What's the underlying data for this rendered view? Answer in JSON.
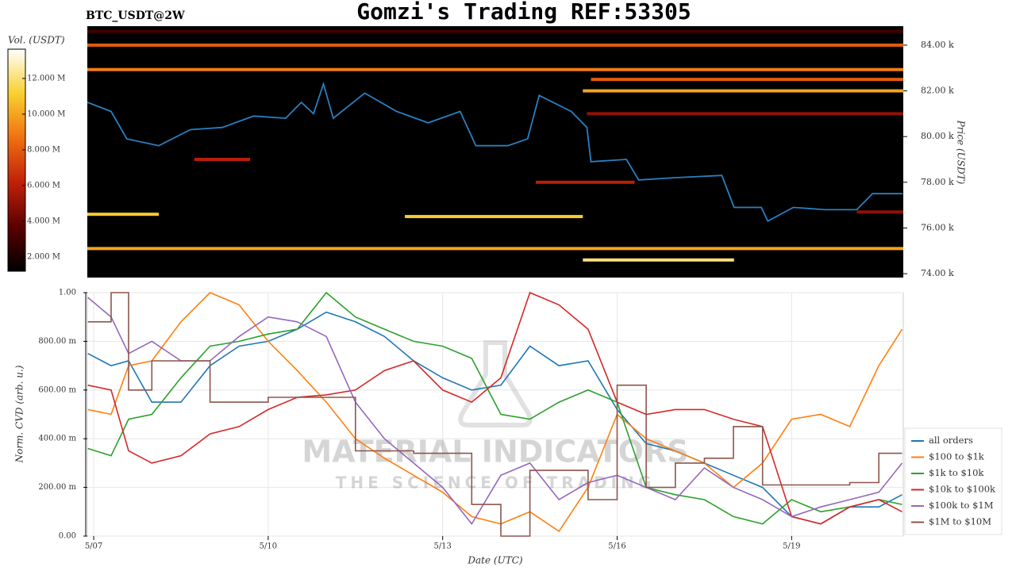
{
  "chart_data": [
    {
      "type": "heatmap",
      "title": "Gomzi's Trading REF:53305",
      "subtitle": "BTC_USDT@2W",
      "colorbar_label": "Vol. (USDT)",
      "ylabel": "Price (USDT)",
      "xlim": [
        6.89,
        20.92
      ],
      "ylim": [
        73830,
        84830
      ],
      "yticks": [
        {
          "value": 74000,
          "label": "74.00 k"
        },
        {
          "value": 76000,
          "label": "76.00 k"
        },
        {
          "value": 78000,
          "label": "78.00 k"
        },
        {
          "value": 80000,
          "label": "80.00 k"
        },
        {
          "value": 82000,
          "label": "82.00 k"
        },
        {
          "value": 84000,
          "label": "84.00 k"
        }
      ],
      "zlim": [
        1200000,
        13640000
      ],
      "zticks": [
        {
          "value": 2000000,
          "label": "2.000 M"
        },
        {
          "value": 4000000,
          "label": "4.000 M"
        },
        {
          "value": 6000000,
          "label": "6.000 M"
        },
        {
          "value": 8000000,
          "label": "8.000 M"
        },
        {
          "value": 10000000,
          "label": "10.000 M"
        },
        {
          "value": 12000000,
          "label": "12.000 M"
        }
      ],
      "colormap": [
        "#000000",
        "#5a0000",
        "#c0200a",
        "#f07010",
        "#f8d030",
        "#ffffff"
      ],
      "bands": [
        {
          "price": 84600,
          "start": 6.89,
          "end": 20.92,
          "volume": 3000000
        },
        {
          "price": 84000,
          "start": 6.89,
          "end": 20.92,
          "volume": 8000000
        },
        {
          "price": 82930,
          "start": 6.89,
          "end": 20.92,
          "volume": 9000000
        },
        {
          "price": 82500,
          "start": 15.55,
          "end": 20.92,
          "volume": 8000000
        },
        {
          "price": 82000,
          "start": 15.41,
          "end": 20.92,
          "volume": 10000000
        },
        {
          "price": 81000,
          "start": 15.48,
          "end": 20.92,
          "volume": 5000000
        },
        {
          "price": 79000,
          "start": 8.73,
          "end": 9.69,
          "volume": 6000000
        },
        {
          "price": 78000,
          "start": 14.6,
          "end": 16.3,
          "volume": 6000000
        },
        {
          "price": 76700,
          "start": 20.12,
          "end": 20.92,
          "volume": 5000000
        },
        {
          "price": 76600,
          "start": 6.89,
          "end": 8.12,
          "volume": 11000000
        },
        {
          "price": 76500,
          "start": 12.35,
          "end": 15.41,
          "volume": 11000000
        },
        {
          "price": 75100,
          "start": 6.89,
          "end": 20.92,
          "volume": 10000000
        },
        {
          "price": 74600,
          "start": 15.41,
          "end": 18.01,
          "volume": 12000000
        }
      ],
      "line": {
        "color": "#2a7fc0",
        "x": [
          6.89,
          7.3,
          7.57,
          8.12,
          8.66,
          9.21,
          9.75,
          10.3,
          10.57,
          10.78,
          10.95,
          11.12,
          11.66,
          12.21,
          12.75,
          13.3,
          13.57,
          14.12,
          14.46,
          14.66,
          15.21,
          15.48,
          15.55,
          16.16,
          16.37,
          16.98,
          17.8,
          18.01,
          18.48,
          18.59,
          19.03,
          19.57,
          20.12,
          20.39,
          20.91
        ],
        "y": [
          81500,
          81100,
          79900,
          79600,
          80300,
          80400,
          80900,
          80800,
          81500,
          81000,
          82300,
          80800,
          81900,
          81100,
          80600,
          81100,
          79600,
          79600,
          79900,
          81800,
          81100,
          80400,
          78900,
          79000,
          78100,
          78200,
          78300,
          76900,
          76900,
          76300,
          76900,
          76800,
          76800,
          77500,
          77500
        ]
      }
    },
    {
      "type": "line",
      "ylabel": "Norm. CVD (arb. u.)",
      "xlabel": "Date (UTC)",
      "watermark": [
        "MATERIAL INDICATORS",
        "THE SCIENCE OF TRADING"
      ],
      "xlim": [
        6.89,
        20.92
      ],
      "ylim": [
        0,
        1
      ],
      "xticks": [
        {
          "value": 7,
          "label": "5/07"
        },
        {
          "value": 10,
          "label": "5/10"
        },
        {
          "value": 13,
          "label": "5/13"
        },
        {
          "value": 16,
          "label": "5/16"
        },
        {
          "value": 19,
          "label": "5/19"
        }
      ],
      "yticks": [
        {
          "value": 0,
          "label": "0.00"
        },
        {
          "value": 0.2,
          "label": "200.00 m"
        },
        {
          "value": 0.4,
          "label": "400.00 m"
        },
        {
          "value": 0.6,
          "label": "600.00 m"
        },
        {
          "value": 0.8,
          "label": "800.00 m"
        },
        {
          "value": 1,
          "label": "1.00"
        }
      ],
      "grid": true,
      "legend": "right",
      "x": [
        6.9,
        7.3,
        7.6,
        8.0,
        8.5,
        9.0,
        9.5,
        10.0,
        10.5,
        11.0,
        11.5,
        12.0,
        12.5,
        13.0,
        13.5,
        14.0,
        14.5,
        15.0,
        15.5,
        16.0,
        16.5,
        17.0,
        17.5,
        18.0,
        18.5,
        19.0,
        19.5,
        20.0,
        20.5,
        20.9
      ],
      "series": [
        {
          "name": "all orders",
          "color": "#1f77b4",
          "values": [
            0.75,
            0.7,
            0.72,
            0.55,
            0.55,
            0.7,
            0.78,
            0.8,
            0.85,
            0.92,
            0.88,
            0.82,
            0.72,
            0.65,
            0.6,
            0.62,
            0.78,
            0.7,
            0.72,
            0.52,
            0.38,
            0.35,
            0.3,
            0.25,
            0.2,
            0.08,
            0.05,
            0.12,
            0.12,
            0.17
          ]
        },
        {
          "name": "$100 to $1k",
          "color": "#ff7f0e",
          "values": [
            0.52,
            0.5,
            0.7,
            0.72,
            0.88,
            1.0,
            0.95,
            0.8,
            0.68,
            0.55,
            0.4,
            0.32,
            0.25,
            0.18,
            0.08,
            0.05,
            0.1,
            0.02,
            0.2,
            0.5,
            0.4,
            0.35,
            0.3,
            0.2,
            0.3,
            0.48,
            0.5,
            0.45,
            0.7,
            0.85
          ]
        },
        {
          "name": "$1k to $10k",
          "color": "#2ca02c",
          "values": [
            0.36,
            0.33,
            0.48,
            0.5,
            0.65,
            0.78,
            0.8,
            0.83,
            0.85,
            1.0,
            0.9,
            0.85,
            0.8,
            0.78,
            0.73,
            0.5,
            0.48,
            0.55,
            0.6,
            0.55,
            0.2,
            0.17,
            0.15,
            0.08,
            0.05,
            0.15,
            0.1,
            0.12,
            0.15,
            0.13
          ]
        },
        {
          "name": "$10k to $100k",
          "color": "#d62728",
          "values": [
            0.62,
            0.6,
            0.35,
            0.3,
            0.33,
            0.42,
            0.45,
            0.52,
            0.57,
            0.58,
            0.6,
            0.68,
            0.72,
            0.6,
            0.55,
            0.65,
            1.0,
            0.95,
            0.85,
            0.55,
            0.5,
            0.52,
            0.52,
            0.48,
            0.45,
            0.08,
            0.05,
            0.12,
            0.15,
            0.1
          ]
        },
        {
          "name": "$100k to $1M",
          "color": "#9467bd",
          "values": [
            0.98,
            0.9,
            0.75,
            0.8,
            0.72,
            0.72,
            0.82,
            0.9,
            0.88,
            0.82,
            0.55,
            0.4,
            0.3,
            0.2,
            0.05,
            0.25,
            0.3,
            0.15,
            0.22,
            0.25,
            0.2,
            0.15,
            0.28,
            0.2,
            0.15,
            0.08,
            0.12,
            0.15,
            0.18,
            0.3
          ]
        },
        {
          "name": "$1M to $10M",
          "color": "#8c564b",
          "step": true,
          "values": [
            0.88,
            1.0,
            0.6,
            0.72,
            0.72,
            0.55,
            0.55,
            0.57,
            0.57,
            0.57,
            0.35,
            0.35,
            0.34,
            0.34,
            0.13,
            0.0,
            0.27,
            0.27,
            0.15,
            0.62,
            0.2,
            0.3,
            0.32,
            0.45,
            0.21,
            0.21,
            0.21,
            0.22,
            0.34,
            0.34
          ]
        }
      ]
    }
  ]
}
